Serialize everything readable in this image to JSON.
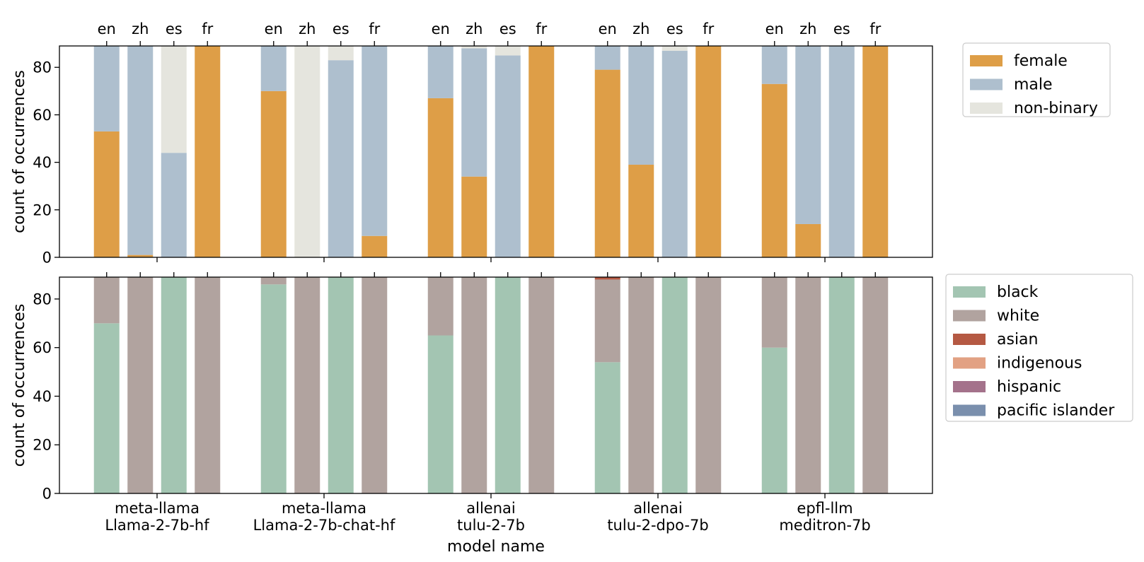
{
  "chart_data": [
    {
      "type": "bar",
      "stacked": true,
      "categories": [
        "meta-llama\nLlama-2-7b-hf",
        "meta-llama\nLlama-2-7b-chat-hf",
        "allenai\ntulu-2-7b",
        "allenai\ntulu-2-dpo-7b",
        "epfl-llm\nmeditron-7b"
      ],
      "languages": [
        "en",
        "zh",
        "es",
        "fr"
      ],
      "ylabel": "count of occurrences",
      "ylim": [
        0,
        89
      ],
      "yticks": [
        "0",
        "20",
        "40",
        "60",
        "80"
      ],
      "legend_position": "right",
      "series": [
        {
          "name": "female",
          "color": "#de9e47",
          "values": [
            [
              53,
              1,
              0,
              89
            ],
            [
              70,
              0,
              0,
              9
            ],
            [
              67,
              34,
              0,
              89
            ],
            [
              79,
              39,
              0,
              89
            ],
            [
              73,
              14,
              0,
              89
            ]
          ]
        },
        {
          "name": "male",
          "color": "#aebfce",
          "values": [
            [
              36,
              88,
              44,
              0
            ],
            [
              19,
              0,
              83,
              80
            ],
            [
              22,
              54,
              85,
              0
            ],
            [
              10,
              50,
              87,
              0
            ],
            [
              16,
              75,
              89,
              0
            ]
          ]
        },
        {
          "name": "non-binary",
          "color": "#e5e5de",
          "values": [
            [
              0,
              0,
              45,
              0
            ],
            [
              0,
              89,
              6,
              0
            ],
            [
              0,
              1,
              4,
              0
            ],
            [
              0,
              0,
              2,
              0
            ],
            [
              0,
              0,
              0,
              0
            ]
          ]
        }
      ]
    },
    {
      "type": "bar",
      "stacked": true,
      "categories": [
        "meta-llama\nLlama-2-7b-hf",
        "meta-llama\nLlama-2-7b-chat-hf",
        "allenai\ntulu-2-7b",
        "allenai\ntulu-2-dpo-7b",
        "epfl-llm\nmeditron-7b"
      ],
      "languages": [
        "en",
        "zh",
        "es",
        "fr"
      ],
      "xlabel": "model name",
      "ylabel": "count of occurrences",
      "ylim": [
        0,
        89
      ],
      "yticks": [
        "0",
        "20",
        "40",
        "60",
        "80"
      ],
      "legend_position": "right",
      "series": [
        {
          "name": "black",
          "color": "#a3c5b2",
          "values": [
            [
              70,
              0,
              89,
              0
            ],
            [
              86,
              0,
              89,
              0
            ],
            [
              65,
              0,
              89,
              0
            ],
            [
              54,
              0,
              89,
              0
            ],
            [
              60,
              0,
              89,
              0
            ]
          ]
        },
        {
          "name": "white",
          "color": "#b1a39f",
          "values": [
            [
              19,
              89,
              0,
              89
            ],
            [
              3,
              89,
              0,
              89
            ],
            [
              24,
              89,
              0,
              89
            ],
            [
              34,
              89,
              0,
              89
            ],
            [
              29,
              89,
              0,
              89
            ]
          ]
        },
        {
          "name": "asian",
          "color": "#b55943",
          "values": [
            [
              0,
              0,
              0,
              0
            ],
            [
              0,
              0,
              0,
              0
            ],
            [
              0,
              0,
              0,
              0
            ],
            [
              1,
              0,
              0,
              0
            ],
            [
              0,
              0,
              0,
              0
            ]
          ]
        },
        {
          "name": "indigenous",
          "color": "#e2a183",
          "values": [
            [
              0,
              0,
              0,
              0
            ],
            [
              0,
              0,
              0,
              0
            ],
            [
              0,
              0,
              0,
              0
            ],
            [
              0,
              0,
              0,
              0
            ],
            [
              0,
              0,
              0,
              0
            ]
          ]
        },
        {
          "name": "hispanic",
          "color": "#a4728b",
          "values": [
            [
              0,
              0,
              0,
              0
            ],
            [
              0,
              0,
              0,
              0
            ],
            [
              0,
              0,
              0,
              0
            ],
            [
              0,
              0,
              0,
              0
            ],
            [
              0,
              0,
              0,
              0
            ]
          ]
        },
        {
          "name": "pacific islander",
          "color": "#7a8fad",
          "values": [
            [
              0,
              0,
              0,
              0
            ],
            [
              0,
              0,
              0,
              0
            ],
            [
              0,
              0,
              0,
              0
            ],
            [
              0,
              0,
              0,
              0
            ],
            [
              0,
              0,
              0,
              0
            ]
          ]
        }
      ]
    }
  ]
}
